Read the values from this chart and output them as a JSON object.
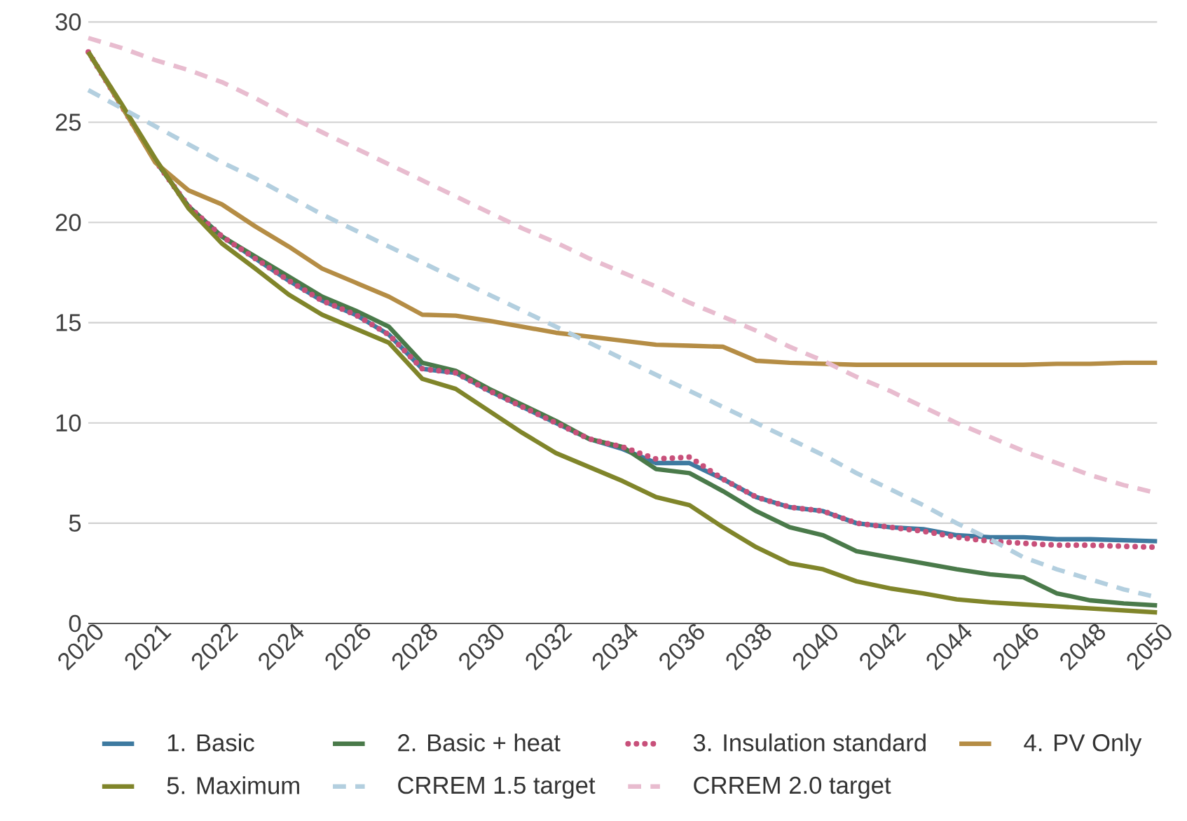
{
  "chart_data": {
    "type": "line",
    "categories": [
      "2020",
      null,
      "2021",
      null,
      "2022",
      null,
      "2024",
      null,
      "2026",
      null,
      "2028",
      null,
      "2030",
      null,
      "2032",
      null,
      "2034",
      null,
      "2036",
      null,
      "2038",
      null,
      "2040",
      null,
      "2042",
      null,
      "2044",
      null,
      "2046",
      null,
      "2048",
      null,
      "2050"
    ],
    "ylim": [
      0,
      30
    ],
    "yticks": [
      0,
      5,
      10,
      15,
      20,
      25,
      30
    ],
    "grid": "y",
    "legend": "bottom",
    "series": [
      {
        "name": "1. Basic",
        "color": "#3e7aa0",
        "line_style": "solid",
        "values": [
          28.5,
          25.8,
          23.1,
          20.8,
          19.3,
          18.2,
          17.1,
          16.1,
          15.4,
          14.4,
          12.7,
          12.5,
          11.6,
          10.8,
          10.0,
          9.2,
          8.7,
          8.0,
          8.0,
          7.2,
          6.3,
          5.8,
          5.6,
          5.0,
          4.8,
          4.7,
          4.4,
          4.3,
          4.3,
          4.2,
          4.2,
          4.15,
          4.1
        ]
      },
      {
        "name": "2. Basic + heat",
        "color": "#4a7a4a",
        "line_style": "solid",
        "values": [
          28.5,
          25.8,
          23.1,
          20.8,
          19.3,
          18.3,
          17.3,
          16.3,
          15.6,
          14.8,
          13.0,
          12.6,
          11.7,
          10.9,
          10.1,
          9.2,
          8.8,
          7.7,
          7.5,
          6.6,
          5.6,
          4.8,
          4.4,
          3.6,
          3.3,
          3.0,
          2.7,
          2.45,
          2.3,
          1.5,
          1.15,
          1.0,
          0.9
        ]
      },
      {
        "name": "3. Insulation standard",
        "color": "#c8507a",
        "line_style": "dotted",
        "values": [
          28.5,
          25.8,
          23.1,
          20.8,
          19.3,
          18.2,
          17.1,
          16.1,
          15.4,
          14.4,
          12.7,
          12.5,
          11.6,
          10.8,
          10.0,
          9.2,
          8.8,
          8.2,
          8.3,
          7.2,
          6.3,
          5.8,
          5.6,
          5.0,
          4.8,
          4.6,
          4.3,
          4.1,
          4.0,
          3.9,
          3.9,
          3.85,
          3.8
        ]
      },
      {
        "name": "4. PV  Only",
        "color": "#b58d45",
        "line_style": "solid",
        "values": [
          28.5,
          25.8,
          23.0,
          21.6,
          20.9,
          19.8,
          18.8,
          17.7,
          17.0,
          16.3,
          15.4,
          15.35,
          15.1,
          14.8,
          14.5,
          14.3,
          14.1,
          13.9,
          13.85,
          13.8,
          13.1,
          13.0,
          12.95,
          12.9,
          12.9,
          12.9,
          12.9,
          12.9,
          12.9,
          12.95,
          12.95,
          13.0,
          13.0
        ]
      },
      {
        "name": "5. Maximum",
        "color": "#80852a",
        "line_style": "solid",
        "values": [
          28.5,
          25.9,
          23.2,
          20.7,
          18.95,
          17.7,
          16.4,
          15.4,
          14.7,
          14.0,
          12.2,
          11.7,
          10.6,
          9.5,
          8.5,
          7.8,
          7.1,
          6.3,
          5.9,
          4.8,
          3.8,
          3.0,
          2.7,
          2.1,
          1.75,
          1.5,
          1.2,
          1.05,
          0.95,
          0.85,
          0.75,
          0.65,
          0.55
        ]
      },
      {
        "name": "CRREM 1.5 target",
        "color": "#b3cfdf",
        "line_style": "dashed",
        "values": [
          26.6,
          25.7,
          24.8,
          23.9,
          23.0,
          22.2,
          21.3,
          20.4,
          19.6,
          18.8,
          18.0,
          17.2,
          16.4,
          15.6,
          14.8,
          14.0,
          13.2,
          12.4,
          11.6,
          10.8,
          10.0,
          9.2,
          8.4,
          7.5,
          6.7,
          5.9,
          5.0,
          4.2,
          3.3,
          2.7,
          2.2,
          1.7,
          1.3
        ]
      },
      {
        "name": "CRREM 2.0 target",
        "color": "#e8bccf",
        "line_style": "dashed",
        "values": [
          29.2,
          28.7,
          28.1,
          27.6,
          27.0,
          26.2,
          25.3,
          24.5,
          23.7,
          22.9,
          22.1,
          21.3,
          20.5,
          19.7,
          19.0,
          18.2,
          17.5,
          16.8,
          16.0,
          15.3,
          14.6,
          13.8,
          13.1,
          12.3,
          11.6,
          10.8,
          10.0,
          9.3,
          8.6,
          8.0,
          7.4,
          6.9,
          6.5
        ]
      }
    ]
  }
}
